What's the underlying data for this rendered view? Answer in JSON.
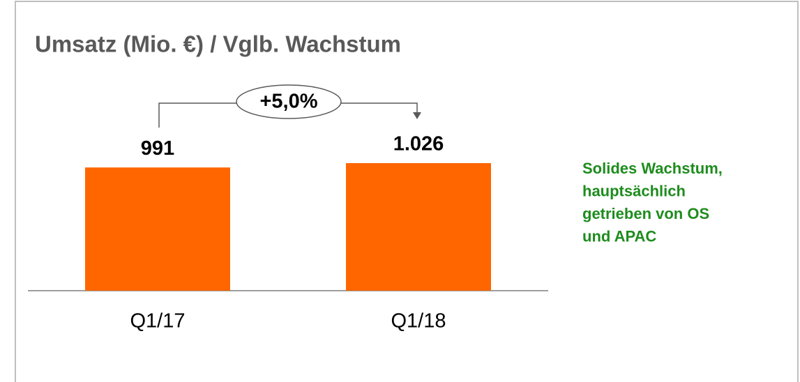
{
  "chart_data": {
    "type": "bar",
    "title": "Umsatz (Mio. €) / Vglb. Wachstum",
    "categories": [
      "Q1/17",
      "Q1/18"
    ],
    "values": [
      991,
      1026
    ],
    "value_labels": [
      "991",
      "1.026"
    ],
    "color": "#ff6600",
    "annotation": "+5,0%",
    "note": [
      "Solides Wachstum,",
      "hauptsächlich",
      "getrieben von OS",
      "und APAC"
    ],
    "note_color": "#1e8c1e"
  }
}
